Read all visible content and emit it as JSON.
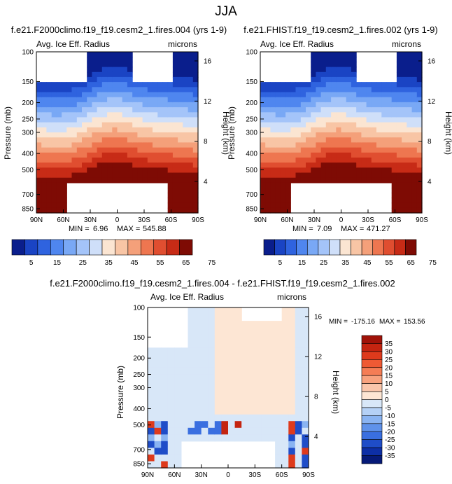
{
  "figure": {
    "title": "JJA"
  },
  "chart_data": [
    {
      "type": "heatmap",
      "title": "f.e21.F2000climo.f19_f19.cesm2_1.fires.004 (yrs 1-9)",
      "field_label": "Avg. Ice Eff. Radius",
      "units": "microns",
      "ylabel": "Pressure (mb)",
      "ylabel_right": "Height (km)",
      "x_ticks": [
        "90N",
        "60N",
        "30N",
        "0",
        "30S",
        "60S",
        "90S"
      ],
      "y_ticks": [
        "100",
        "150",
        "200",
        "250",
        "300",
        "400",
        "500",
        "700",
        "850"
      ],
      "height_ticks": [
        "4",
        "8",
        "12",
        "16"
      ],
      "ylim": [
        100,
        900
      ],
      "stats": {
        "min_label": "MIN =",
        "min": "6.96",
        "max_label": "MAX =",
        "max": "545.88"
      },
      "colorbar": {
        "ticks": [
          "5",
          "15",
          "25",
          "35",
          "45",
          "55",
          "65",
          "75"
        ],
        "colors": [
          "#0a1e8c",
          "#1a44c4",
          "#2f63df",
          "#4f86ef",
          "#79a8f5",
          "#a4c4f9",
          "#cfdff9",
          "#fbe5d2",
          "#f8c5a5",
          "#f4a07a",
          "#ee7650",
          "#e04e30",
          "#c72b16",
          "#7e0b04"
        ]
      }
    },
    {
      "type": "heatmap",
      "title": "f.e21.FHIST.f19_f19.cesm2_1.fires.002 (yrs 1-9)",
      "field_label": "Avg. Ice Eff. Radius",
      "units": "microns",
      "ylabel": "Pressure (mb)",
      "ylabel_right": "Height (km)",
      "x_ticks": [
        "90N",
        "60N",
        "30N",
        "0",
        "30S",
        "60S",
        "90S"
      ],
      "y_ticks": [
        "100",
        "150",
        "200",
        "250",
        "300",
        "400",
        "500",
        "700",
        "850"
      ],
      "height_ticks": [
        "4",
        "8",
        "12",
        "16"
      ],
      "ylim": [
        100,
        900
      ],
      "stats": {
        "min_label": "MIN =",
        "min": "7.09",
        "max_label": "MAX =",
        "max": "471.27"
      },
      "colorbar": {
        "ticks": [
          "5",
          "15",
          "25",
          "35",
          "45",
          "55",
          "65",
          "75"
        ],
        "colors": [
          "#0a1e8c",
          "#1a44c4",
          "#2f63df",
          "#4f86ef",
          "#79a8f5",
          "#a4c4f9",
          "#cfdff9",
          "#fbe5d2",
          "#f8c5a5",
          "#f4a07a",
          "#ee7650",
          "#e04e30",
          "#c72b16",
          "#7e0b04"
        ]
      }
    },
    {
      "type": "heatmap",
      "title": "f.e21.F2000climo.f19_f19.cesm2_1.fires.004 - f.e21.FHIST.f19_f19.cesm2_1.fires.002",
      "field_label": "Avg. Ice Eff. Radius",
      "units": "microns",
      "ylabel": "Pressure (mb)",
      "ylabel_right": "Height (km)",
      "x_ticks": [
        "90N",
        "60N",
        "30N",
        "0",
        "30S",
        "60S",
        "90S"
      ],
      "y_ticks": [
        "100",
        "150",
        "200",
        "250",
        "300",
        "400",
        "500",
        "700",
        "850"
      ],
      "height_ticks": [
        "4",
        "8",
        "12",
        "16"
      ],
      "ylim": [
        100,
        900
      ],
      "stats": {
        "min_label": "MIN =",
        "min": "-175.16",
        "max_label": "MAX =",
        "max": "153.56"
      },
      "colorbar": {
        "ticks": [
          "35",
          "30",
          "25",
          "20",
          "15",
          "10",
          "5",
          "0",
          "-5",
          "-10",
          "-15",
          "-20",
          "-25",
          "-30",
          "-35"
        ],
        "colors": [
          "#a01208",
          "#c42410",
          "#de3a1c",
          "#ef5a34",
          "#f57d55",
          "#f8a27e",
          "#fac6ab",
          "#fde6d4",
          "#d8e7f8",
          "#b5d1f6",
          "#8ab4f2",
          "#5f92ea",
          "#3a6fe0",
          "#1f4dc8",
          "#0d2fa6",
          "#061a78"
        ]
      }
    }
  ]
}
